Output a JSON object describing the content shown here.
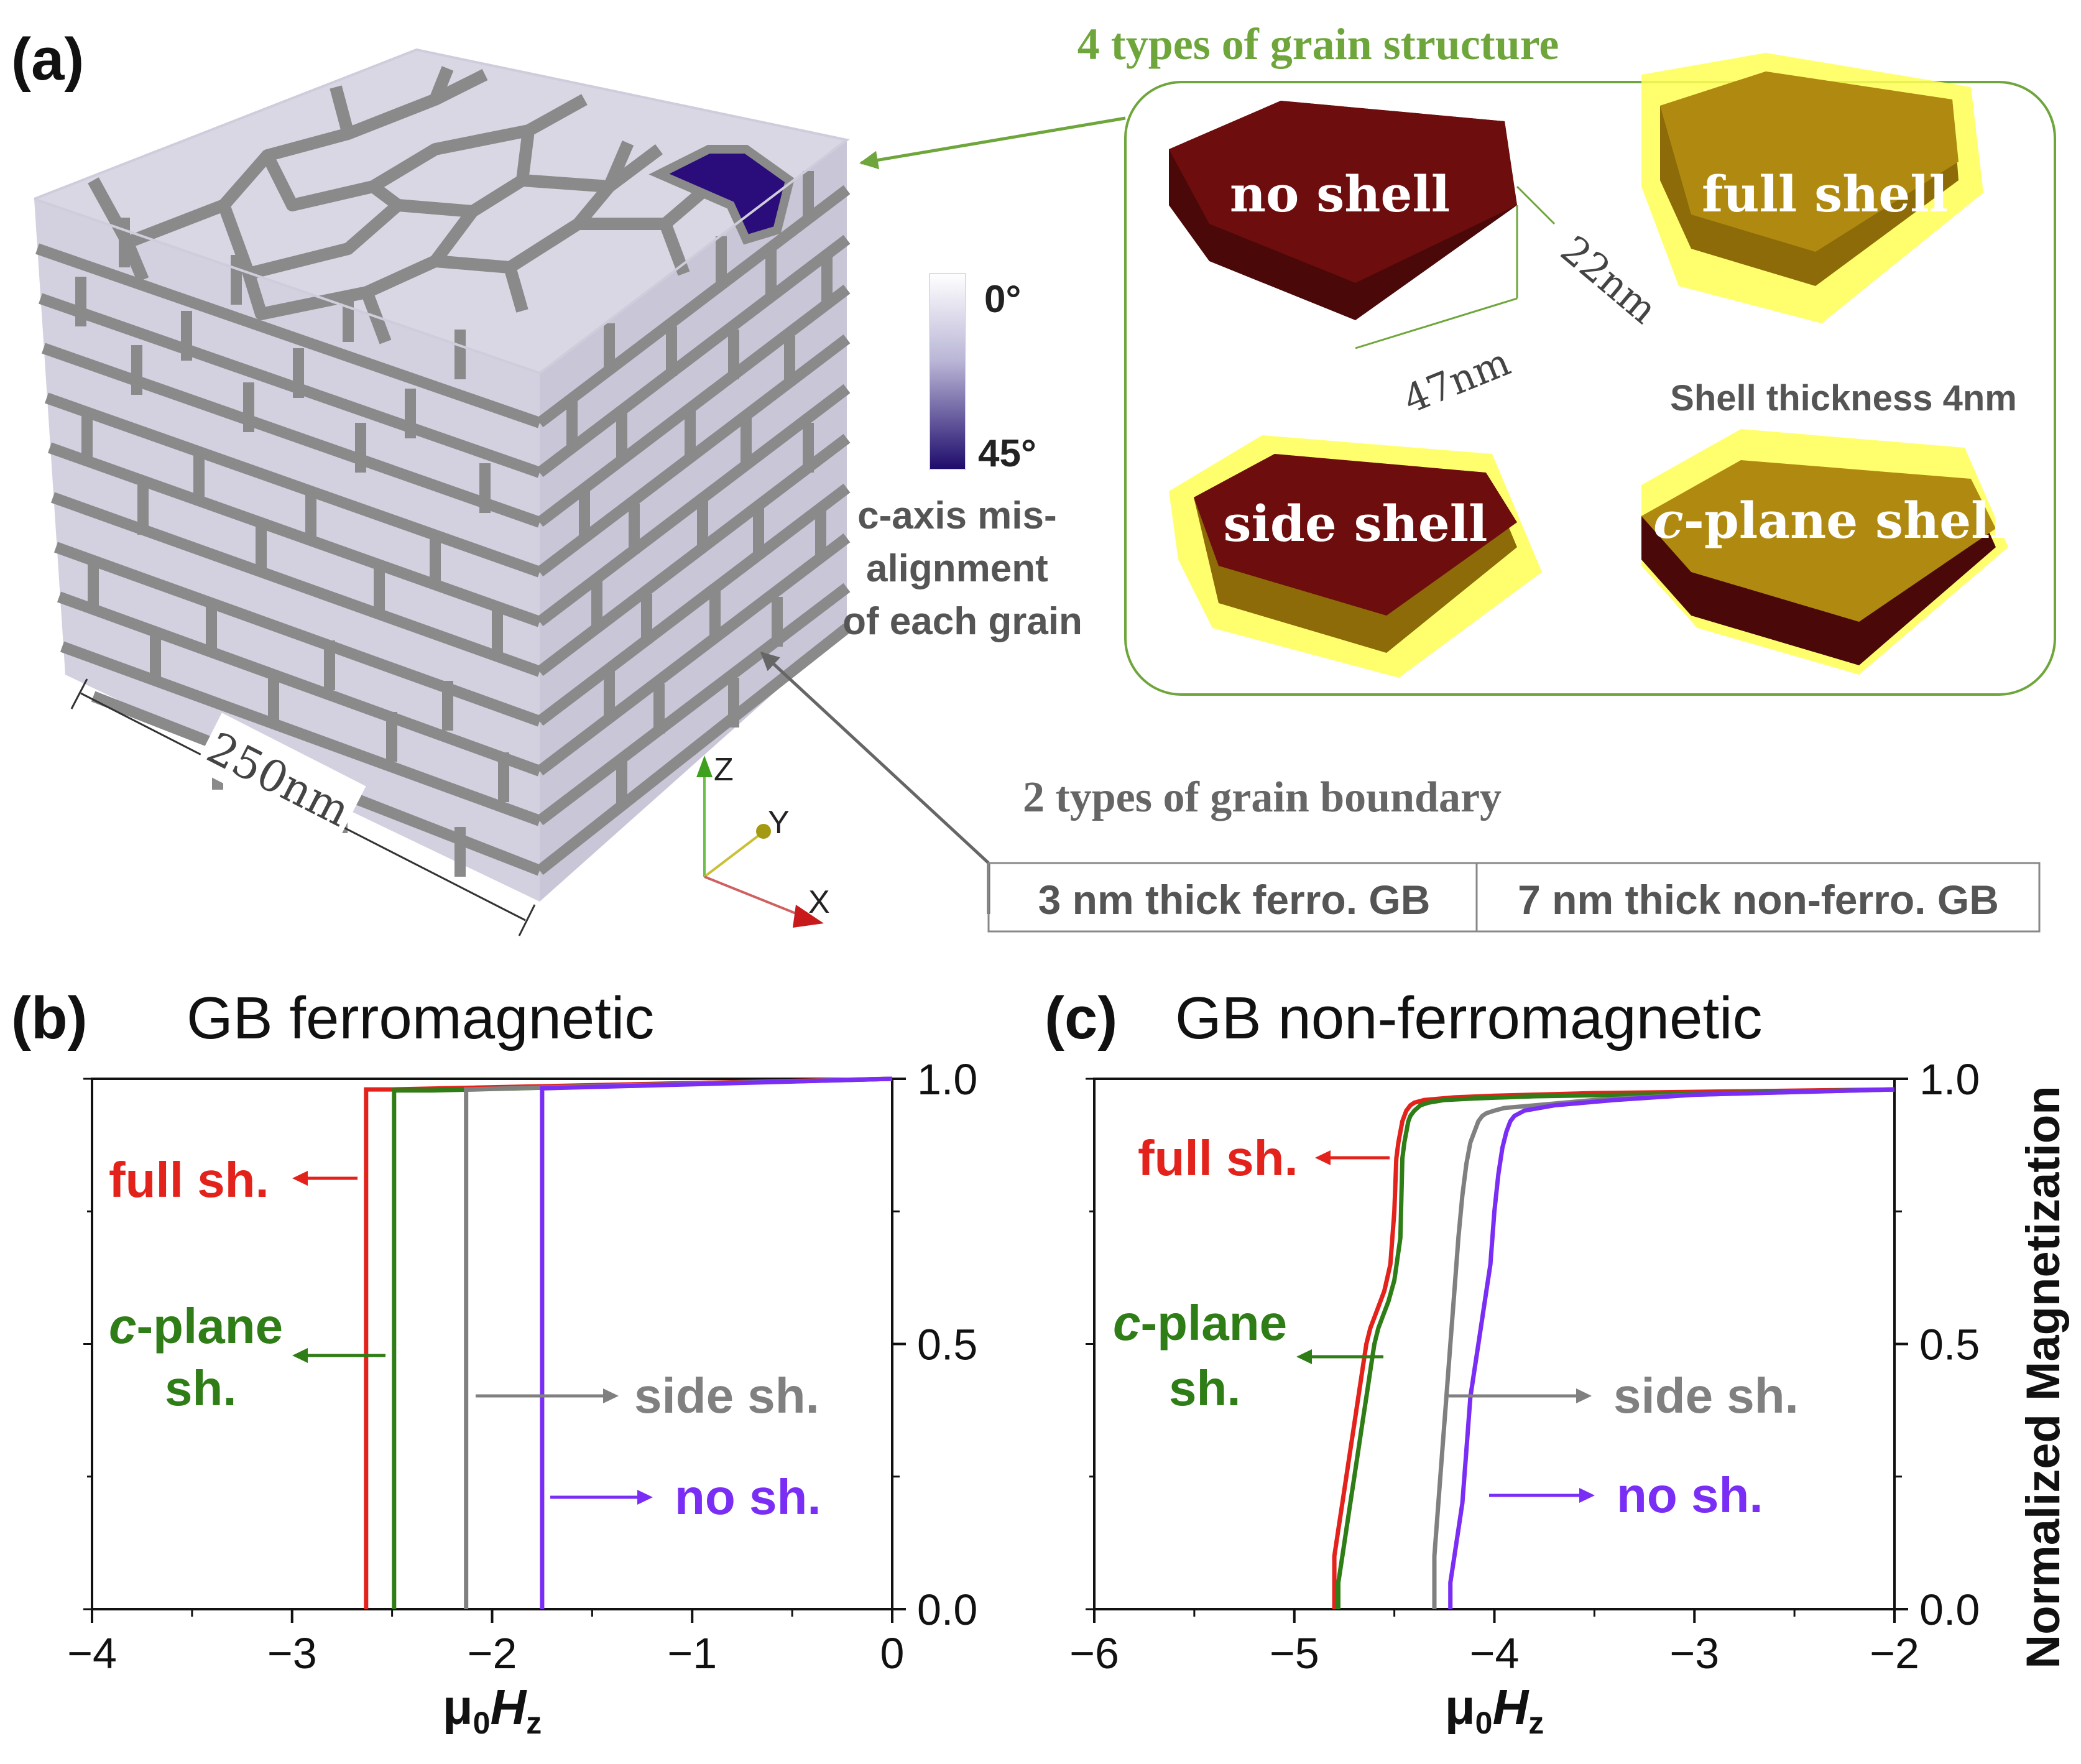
{
  "figure": {
    "panel_a_label": "(a)",
    "panel_b_label": "(b)",
    "panel_c_label": "(c)",
    "cube_size": "250nm",
    "colorbar_top": "0°",
    "colorbar_bottom": "45°",
    "colorbar_caption": [
      "c-axis mis-",
      "alignment",
      "of each grain"
    ],
    "axes_labels": {
      "z": "Z",
      "y": "Y",
      "x": "X"
    },
    "grain_structure_title": "4 types of grain structure",
    "grain_types": {
      "no_shell": "no shell",
      "full_shell": "full shell",
      "side_shell": "side shell",
      "c_plane_shell_prefix": "c",
      "c_plane_shell_rest": "-plane shell"
    },
    "grain_dims": {
      "thickness": "22nm",
      "width": "47nm"
    },
    "shell_thickness": "Shell thickness 4nm",
    "grain_boundary_title": "2 types of grain boundary",
    "gb_types": [
      "3 nm thick ferro. GB",
      "7 nm thick non-ferro. GB"
    ],
    "colors": {
      "full": "#e3231b",
      "cplane": "#2f7d16",
      "side": "#808080",
      "none": "#7a2ef5",
      "title_green": "#6ea63b",
      "grain_dark": "#6e0d0d",
      "shell_yellow": "#ffff55",
      "shell_gold": "#b08a10",
      "cube_top": "#d7d5e3",
      "gb_gray": "#8a8a8a"
    }
  },
  "chart_data": [
    {
      "type": "line",
      "panel": "(b)",
      "title": "GB ferromagnetic",
      "xlabel_mu": "μ",
      "xlabel_sub0": "0",
      "xlabel_H": "H",
      "xlabel_subz": "z",
      "xlim": [
        -4,
        0
      ],
      "ylim": [
        0,
        1
      ],
      "xticks": [
        -4,
        -3,
        -2,
        -1,
        0
      ],
      "xtick_labels": [
        "−4",
        "−3",
        "−2",
        "−1",
        "0"
      ],
      "yticks": [
        0,
        0.5,
        1
      ],
      "ytick_labels": [
        "0.0",
        "0.5",
        "1.0"
      ],
      "series": [
        {
          "name": "full sh.",
          "color": "#e3231b",
          "x": [
            -2.63,
            -2.63,
            -2.5,
            0
          ],
          "y": [
            0,
            0.98,
            0.98,
            1.0
          ]
        },
        {
          "name": "c-plane sh.",
          "color": "#2f7d16",
          "x": [
            -2.49,
            -2.49,
            -2.3,
            0
          ],
          "y": [
            0,
            0.978,
            0.978,
            1.0
          ]
        },
        {
          "name": "side sh.",
          "color": "#808080",
          "x": [
            -2.13,
            -2.13,
            0
          ],
          "y": [
            0,
            0.98,
            1.0
          ]
        },
        {
          "name": "no sh.",
          "color": "#7a2ef5",
          "x": [
            -1.75,
            -1.75,
            0
          ],
          "y": [
            0,
            0.982,
            1.0
          ]
        }
      ],
      "annotations": {
        "full": "full sh.",
        "cplane_c": "c",
        "cplane_rest": "-plane",
        "cplane_sh": "sh.",
        "side": "side sh.",
        "none": "no sh."
      }
    },
    {
      "type": "line",
      "panel": "(c)",
      "title": "GB non-ferromagnetic",
      "xlabel_mu": "μ",
      "xlabel_sub0": "0",
      "xlabel_H": "H",
      "xlabel_subz": "z",
      "ylabel": "Normalized Magnetization",
      "xlim": [
        -6,
        -2
      ],
      "ylim": [
        0,
        1
      ],
      "xticks": [
        -6,
        -5,
        -4,
        -3,
        -2
      ],
      "xtick_labels": [
        "−6",
        "−5",
        "−4",
        "−3",
        "−2"
      ],
      "yticks": [
        0,
        0.5,
        1
      ],
      "ytick_labels": [
        "0.0",
        "0.5",
        "1.0"
      ],
      "series": [
        {
          "name": "full sh.",
          "color": "#e3231b",
          "x": [
            -4.8,
            -4.8,
            -4.78,
            -4.76,
            -4.74,
            -4.72,
            -4.7,
            -4.68,
            -4.66,
            -4.64,
            -4.62,
            -4.6,
            -4.58,
            -4.55,
            -4.52,
            -4.5,
            -4.49,
            -4.48,
            -4.47,
            -4.46,
            -4.45,
            -4.44,
            -4.42,
            -4.4,
            -4.35,
            -4.2,
            -4.0,
            -3.5,
            -2.0
          ],
          "y": [
            0,
            0.1,
            0.15,
            0.2,
            0.25,
            0.3,
            0.35,
            0.4,
            0.45,
            0.5,
            0.53,
            0.55,
            0.57,
            0.6,
            0.65,
            0.75,
            0.85,
            0.88,
            0.9,
            0.92,
            0.93,
            0.94,
            0.95,
            0.955,
            0.96,
            0.965,
            0.968,
            0.973,
            0.98
          ]
        },
        {
          "name": "c-plane sh.",
          "color": "#2f7d16",
          "x": [
            -4.78,
            -4.78,
            -4.76,
            -4.74,
            -4.72,
            -4.7,
            -4.68,
            -4.66,
            -4.64,
            -4.62,
            -4.6,
            -4.58,
            -4.56,
            -4.53,
            -4.5,
            -4.47,
            -4.46,
            -4.45,
            -4.44,
            -4.43,
            -4.42,
            -4.4,
            -4.37,
            -4.33,
            -4.25,
            -4.1,
            -3.8,
            -3.0,
            -2.0
          ],
          "y": [
            0,
            0.05,
            0.1,
            0.15,
            0.2,
            0.25,
            0.3,
            0.35,
            0.4,
            0.45,
            0.5,
            0.53,
            0.55,
            0.58,
            0.62,
            0.7,
            0.85,
            0.88,
            0.9,
            0.92,
            0.93,
            0.94,
            0.95,
            0.955,
            0.96,
            0.963,
            0.967,
            0.972,
            0.98
          ]
        },
        {
          "name": "side sh.",
          "color": "#808080",
          "x": [
            -4.3,
            -4.3,
            -4.28,
            -4.26,
            -4.24,
            -4.22,
            -4.2,
            -4.18,
            -4.16,
            -4.14,
            -4.12,
            -4.1,
            -4.08,
            -4.06,
            -4.04,
            -4.0,
            -3.95,
            -3.8,
            -3.5,
            -3.0,
            -2.0
          ],
          "y": [
            0,
            0.1,
            0.2,
            0.3,
            0.4,
            0.5,
            0.6,
            0.7,
            0.78,
            0.84,
            0.88,
            0.9,
            0.92,
            0.93,
            0.935,
            0.94,
            0.945,
            0.95,
            0.96,
            0.97,
            0.98
          ]
        },
        {
          "name": "no sh.",
          "color": "#7a2ef5",
          "x": [
            -4.22,
            -4.22,
            -4.2,
            -4.18,
            -4.16,
            -4.14,
            -4.12,
            -4.1,
            -4.08,
            -4.06,
            -4.04,
            -4.02,
            -4.0,
            -3.98,
            -3.96,
            -3.94,
            -3.92,
            -3.9,
            -3.85,
            -3.7,
            -3.4,
            -3.0,
            -2.0
          ],
          "y": [
            0,
            0.05,
            0.1,
            0.15,
            0.2,
            0.3,
            0.4,
            0.45,
            0.5,
            0.55,
            0.6,
            0.65,
            0.75,
            0.82,
            0.87,
            0.9,
            0.92,
            0.93,
            0.94,
            0.95,
            0.96,
            0.97,
            0.98
          ]
        }
      ],
      "annotations": {
        "full": "full sh.",
        "cplane_c": "c",
        "cplane_rest": "-plane",
        "cplane_sh": "sh.",
        "side": "side sh.",
        "none": "no sh."
      }
    }
  ]
}
